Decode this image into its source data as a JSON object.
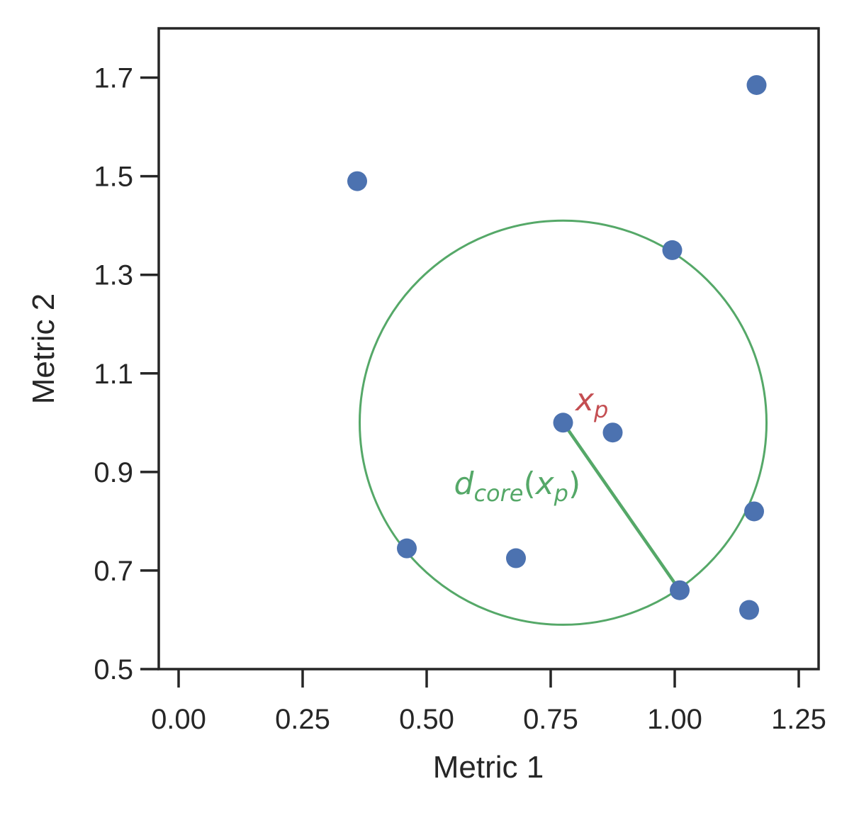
{
  "chart_data": {
    "type": "scatter",
    "title": "",
    "xlabel": "Metric 1",
    "ylabel": "Metric 2",
    "xlim": [
      -0.04,
      1.29
    ],
    "ylim": [
      0.5,
      1.8
    ],
    "xticks": [
      0.0,
      0.25,
      0.5,
      0.75,
      1.0,
      1.25
    ],
    "xtick_labels": [
      "0.00",
      "0.25",
      "0.50",
      "0.75",
      "1.00",
      "1.25"
    ],
    "yticks": [
      0.5,
      0.7,
      0.9,
      1.1,
      1.3,
      1.5,
      1.7
    ],
    "ytick_labels": [
      "0.5",
      "0.7",
      "0.9",
      "1.1",
      "1.3",
      "1.5",
      "1.7"
    ],
    "grid": false,
    "point_color": "#4c72b0",
    "points": [
      {
        "x": 0.36,
        "y": 1.49
      },
      {
        "x": 1.165,
        "y": 1.685
      },
      {
        "x": 0.995,
        "y": 1.35
      },
      {
        "x": 0.775,
        "y": 1.0
      },
      {
        "x": 0.875,
        "y": 0.98
      },
      {
        "x": 1.16,
        "y": 0.82
      },
      {
        "x": 0.46,
        "y": 0.745
      },
      {
        "x": 0.68,
        "y": 0.725
      },
      {
        "x": 1.01,
        "y": 0.66
      },
      {
        "x": 1.15,
        "y": 0.62
      }
    ],
    "core_circle": {
      "center_x": 0.775,
      "center_y": 1.0,
      "radius": 0.41,
      "color": "#55a868"
    },
    "core_radius_line": {
      "x1": 0.775,
      "y1": 1.0,
      "x2": 1.01,
      "y2": 0.66,
      "color": "#55a868"
    },
    "annotations": {
      "point_label": {
        "base": "x",
        "sub": "p",
        "x": 0.8,
        "y": 1.025,
        "color": "#c44e52"
      },
      "distance_label": {
        "d": "d",
        "core": "core",
        "open": "(",
        "x": "x",
        "p": "p",
        "close": ")",
        "x_pos": 0.555,
        "y_pos": 0.855,
        "color": "#55a868"
      }
    }
  }
}
